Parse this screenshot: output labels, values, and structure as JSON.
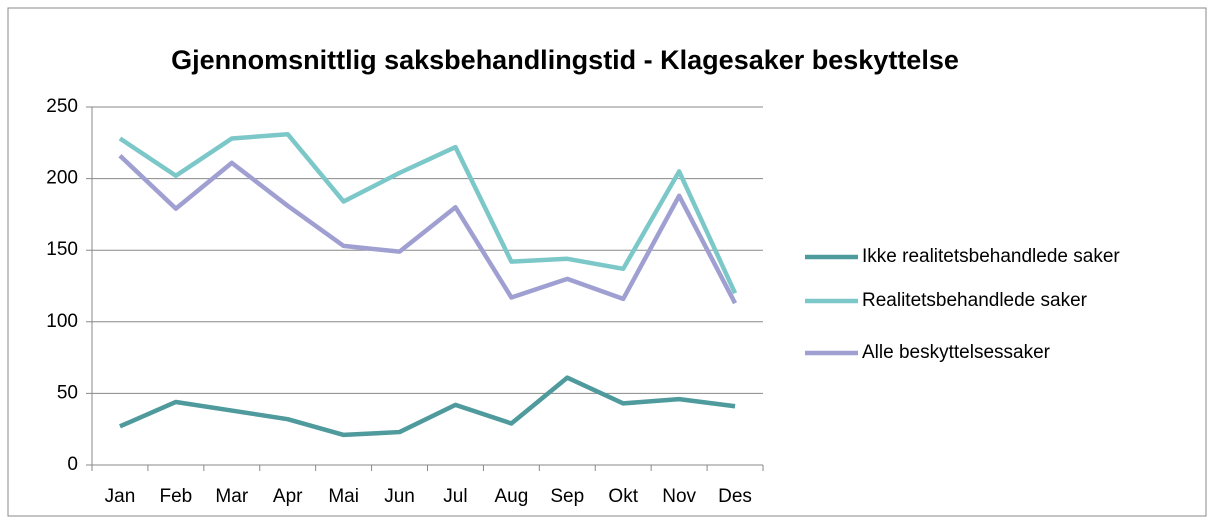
{
  "chart_data": {
    "type": "line",
    "title": "Gjennomsnittlig saksbehandlingstid - Klagesaker beskyttelse",
    "categories": [
      "Jan",
      "Feb",
      "Mar",
      "Apr",
      "Mai",
      "Jun",
      "Jul",
      "Aug",
      "Sep",
      "Okt",
      "Nov",
      "Des"
    ],
    "series": [
      {
        "name": "Ikke realitetsbehandlede saker",
        "color": "#4f9a9c",
        "values": [
          27,
          44,
          38,
          32,
          21,
          23,
          42,
          29,
          61,
          43,
          46,
          41
        ]
      },
      {
        "name": "Realitetsbehandlede saker",
        "color": "#7cc8c9",
        "values": [
          228,
          202,
          228,
          231,
          184,
          204,
          222,
          142,
          144,
          137,
          205,
          120
        ]
      },
      {
        "name": "Alle beskyttelsessaker",
        "color": "#a09fd1",
        "values": [
          216,
          179,
          211,
          181,
          153,
          149,
          180,
          117,
          130,
          116,
          188,
          113
        ]
      }
    ],
    "ylim": [
      0,
      250
    ],
    "yticks": [
      0,
      50,
      100,
      150,
      200,
      250
    ],
    "grid": true,
    "legend": "right"
  }
}
